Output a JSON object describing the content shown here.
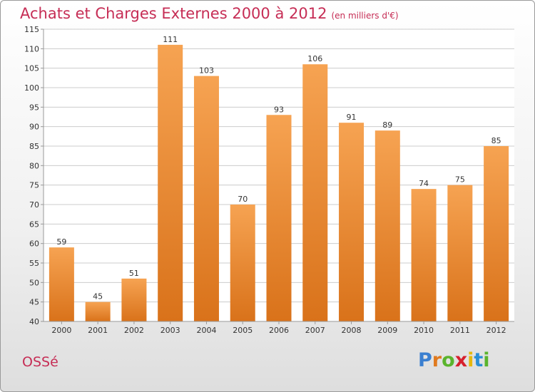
{
  "header": {
    "title": "Achats et Charges Externes 2000 à 2012",
    "subtitle": "(en milliers d'€)"
  },
  "footer": {
    "commune": "OSSé",
    "logo_letters": [
      "P",
      "r",
      "o",
      "x",
      "i",
      "t",
      "i"
    ],
    "logo_colors": [
      "#3a7fd0",
      "#e07a1f",
      "#5ab42d",
      "#d6202d",
      "#e6b80e",
      "#2b8fd6",
      "#5ab42d"
    ]
  },
  "colors": {
    "bar_top": "#f6a352",
    "bar_bottom": "#d9721a",
    "axis_text": "#333333",
    "grid": "#cccccc"
  },
  "chart_data": {
    "type": "bar",
    "title": "Achats et Charges Externes 2000 à 2012",
    "categories": [
      "2000",
      "2001",
      "2002",
      "2003",
      "2004",
      "2005",
      "2006",
      "2007",
      "2008",
      "2009",
      "2010",
      "2011",
      "2012"
    ],
    "values": [
      59,
      45,
      51,
      111,
      103,
      70,
      93,
      106,
      91,
      89,
      74,
      75,
      85
    ],
    "ylim": [
      40,
      115
    ],
    "yticks": [
      40,
      45,
      50,
      55,
      60,
      65,
      70,
      75,
      80,
      85,
      90,
      95,
      100,
      105,
      110,
      115
    ],
    "grid": true,
    "xlabel": "",
    "ylabel": ""
  }
}
